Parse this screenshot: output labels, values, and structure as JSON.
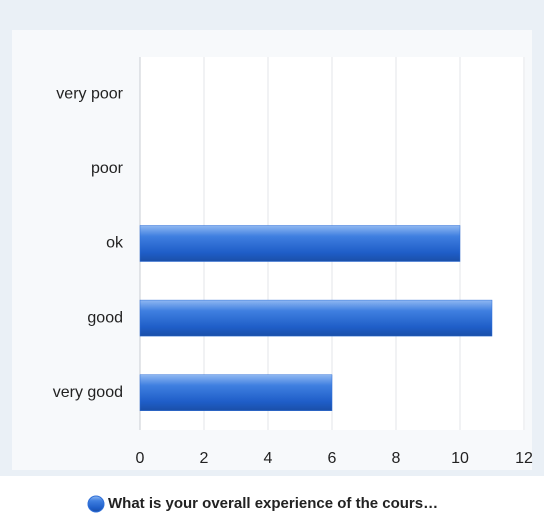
{
  "chart_data": {
    "type": "bar",
    "categories": [
      "very poor",
      "poor",
      "ok",
      "good",
      "very good"
    ],
    "series": [
      {
        "name": "What is your overall experience of the cours…",
        "color": "#2f6fd8",
        "values": [
          0,
          0,
          10,
          11,
          6
        ]
      }
    ],
    "xlim": [
      0,
      12
    ],
    "xticks": [
      0,
      2,
      4,
      6,
      8,
      10,
      12
    ],
    "grid": true
  }
}
